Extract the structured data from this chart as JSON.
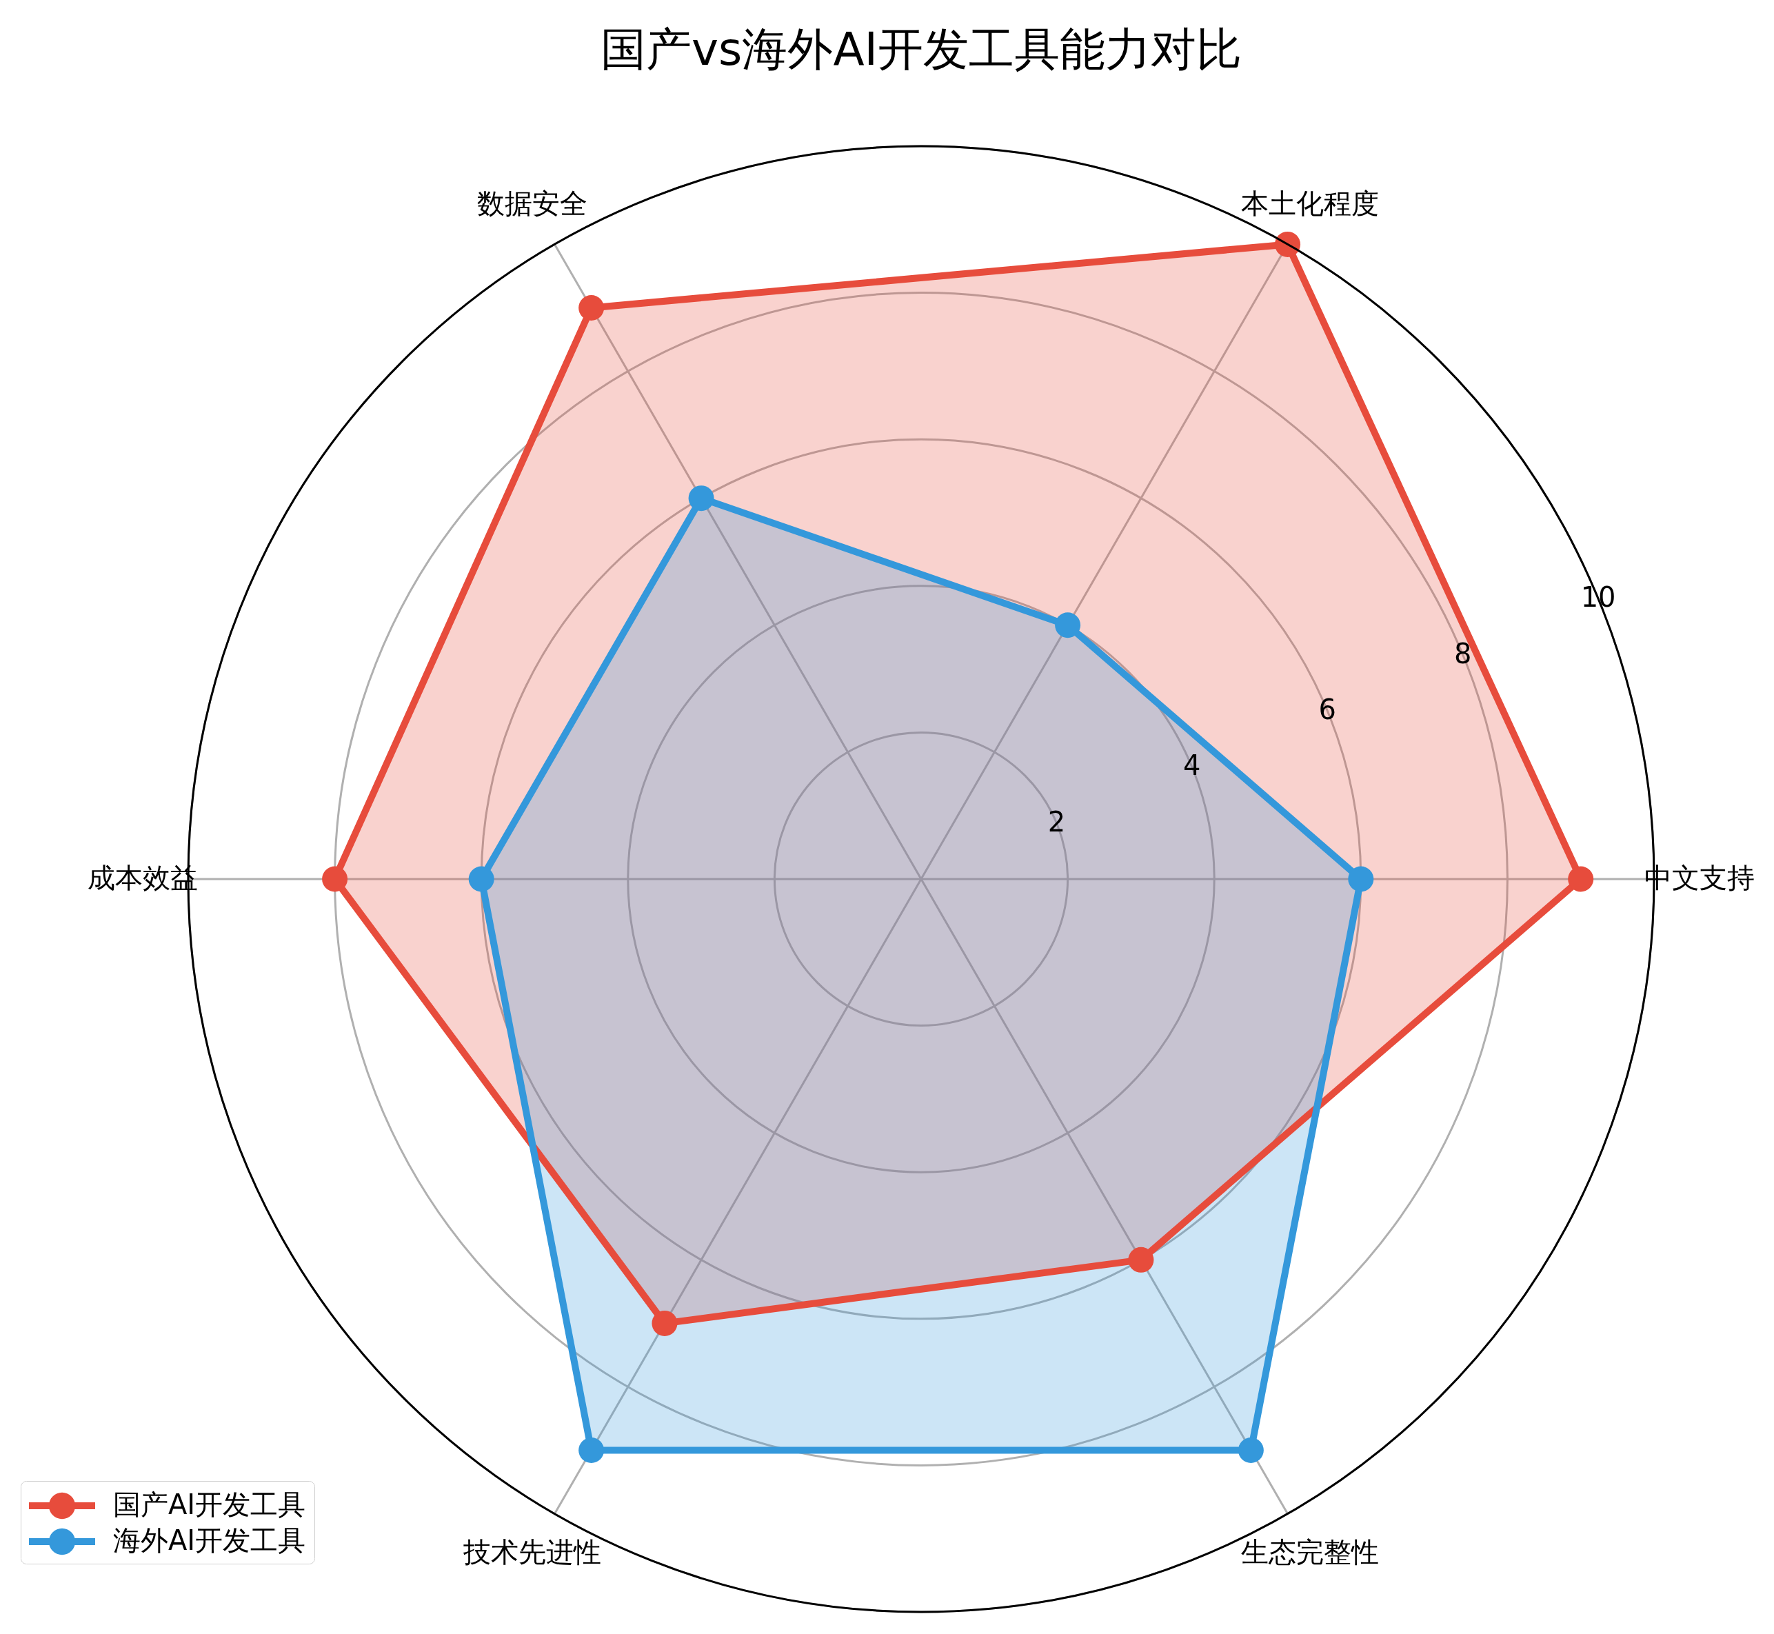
{
  "chart_data": {
    "type": "radar",
    "title": "国产vs海外AI开发工具能力对比",
    "categories": [
      "本土化程度",
      "中文支持",
      "生态完整性",
      "技术先进性",
      "成本效益",
      "数据安全"
    ],
    "series": [
      {
        "name": "国产AI开发工具",
        "color": "#e74c3c",
        "values": [
          10,
          9,
          6,
          7,
          8,
          9
        ]
      },
      {
        "name": "海外AI开发工具",
        "color": "#3498db",
        "values": [
          4,
          6,
          9,
          9,
          6,
          6
        ]
      }
    ],
    "ylim": [
      0,
      10
    ],
    "yticks": [
      2,
      4,
      6,
      8,
      10
    ],
    "grid": true,
    "legend": "bottom left",
    "marker": "circle"
  }
}
